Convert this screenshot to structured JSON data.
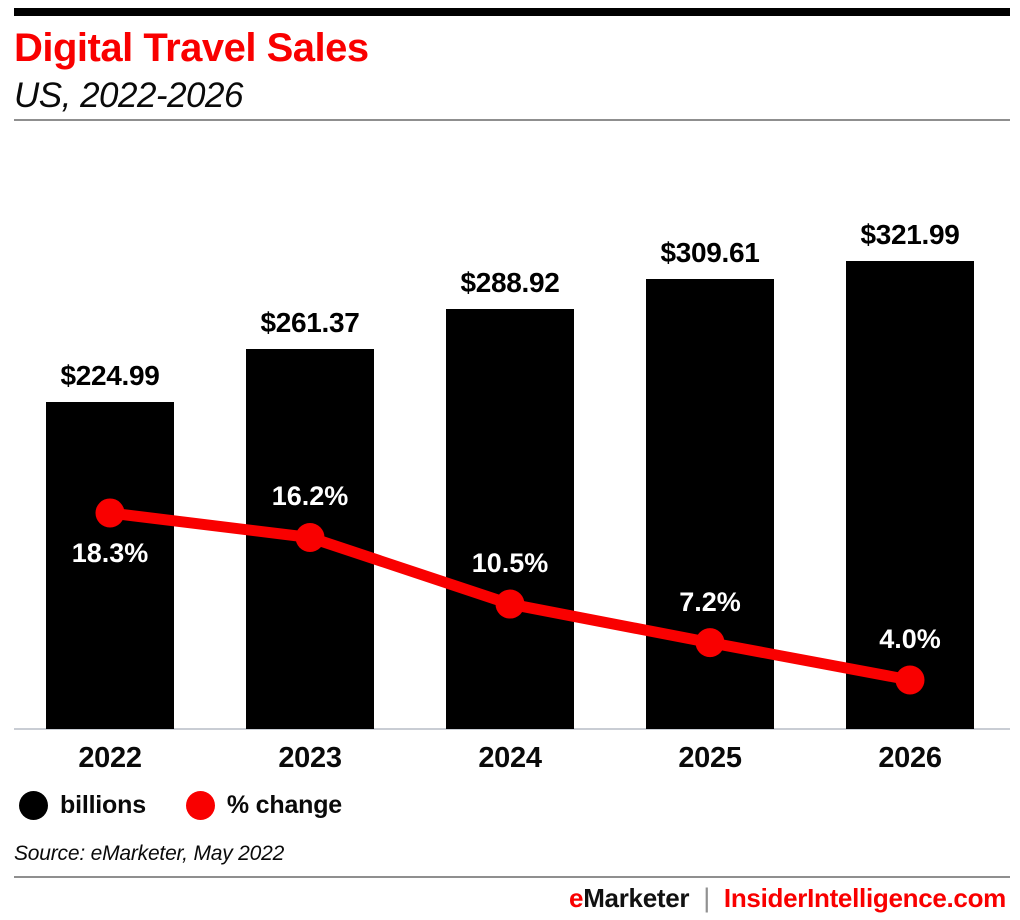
{
  "header": {
    "title": "Digital Travel Sales",
    "subtitle": "US, 2022-2026"
  },
  "chart_data": {
    "type": "bar",
    "subtype": "bar-with-line-overlay",
    "categories": [
      "2022",
      "2023",
      "2024",
      "2025",
      "2026"
    ],
    "series": [
      {
        "name": "billions",
        "type": "bar",
        "color": "#000000",
        "values": [
          224.99,
          261.37,
          288.92,
          309.61,
          321.99
        ],
        "labels": [
          "$224.99",
          "$261.37",
          "$288.92",
          "$309.61",
          "$321.99"
        ]
      },
      {
        "name": "% change",
        "type": "line",
        "color": "#f90000",
        "values": [
          18.3,
          16.2,
          10.5,
          7.2,
          4.0
        ],
        "labels": [
          "18.3%",
          "16.2%",
          "10.5%",
          "7.2%",
          "4.0%"
        ]
      }
    ],
    "legend": [
      {
        "label": "billions",
        "color": "#000000"
      },
      {
        "label": "% change",
        "color": "#f90000"
      }
    ],
    "legend_position": "bottom-left",
    "grid": false,
    "value_axis_visible": false,
    "title": "Digital Travel Sales",
    "subtitle": "US, 2022-2026"
  },
  "source": "Source: eMarketer, May 2022",
  "footer": {
    "brand_first_letter": "e",
    "brand_rest": "Marketer",
    "separator": "|",
    "site": "InsiderIntelligence.com"
  },
  "colors": {
    "brand_red": "#f90000",
    "bar_black": "#000000",
    "axis_gray": "#c9cdd4",
    "rule_gray": "#8f8f8f"
  }
}
